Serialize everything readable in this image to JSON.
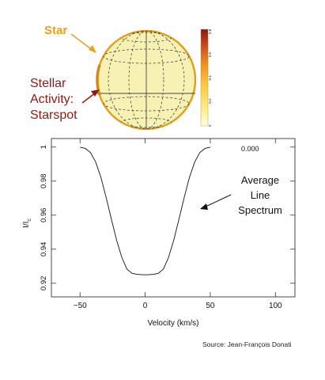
{
  "labels": {
    "star": "Star",
    "activity": [
      "Stellar",
      "Activity:",
      "Starspot"
    ],
    "line_spectrum": [
      "Average",
      "Line",
      "Spectrum"
    ],
    "source": "Source: Jean-François Donati"
  },
  "colorbar": {
    "ticks": [
      "0",
      "0.2",
      "0.4",
      "0.6",
      "0.8"
    ],
    "colors": [
      "#ffffd8",
      "#ffe97a",
      "#fdc23a",
      "#f08c1e",
      "#c8481c",
      "#8a1a10"
    ]
  },
  "star": {
    "fill": "#f7f2b4",
    "edge": "#e0a020"
  },
  "colors": {
    "star_label": "#e8a21a",
    "activity_label": "#8b1a14"
  },
  "chart_data": {
    "type": "line",
    "phase_label": "0.000",
    "xlabel": "Velocity (km/s)",
    "ylabel_main": "I/I",
    "ylabel_sub": "c",
    "xlim": [
      -72,
      115
    ],
    "ylim": [
      0.912,
      1.005
    ],
    "x_ticks": [
      -50,
      0,
      50,
      100
    ],
    "x_tick_labels": [
      "−50",
      "0",
      "50",
      "100"
    ],
    "y_ticks": [
      0.92,
      0.94,
      0.96,
      0.98,
      1.0
    ],
    "y_tick_labels": [
      "0.92",
      "0.94",
      "0.96",
      "0.98",
      "1"
    ],
    "series": [
      {
        "x": [
          -50,
          -46,
          -42,
          -38,
          -34,
          -30,
          -26,
          -22,
          -18,
          -14,
          -10,
          -6,
          -2,
          0,
          2,
          6,
          10,
          14,
          18,
          22,
          26,
          30,
          34,
          38,
          42,
          46,
          50
        ],
        "y": [
          0.9999,
          0.9992,
          0.9968,
          0.9912,
          0.9822,
          0.9705,
          0.9578,
          0.9455,
          0.9353,
          0.9283,
          0.9258,
          0.9252,
          0.925,
          0.925,
          0.925,
          0.9252,
          0.9258,
          0.9283,
          0.9353,
          0.9455,
          0.9578,
          0.9705,
          0.9822,
          0.9912,
          0.9968,
          0.9992,
          0.9999
        ]
      }
    ]
  }
}
